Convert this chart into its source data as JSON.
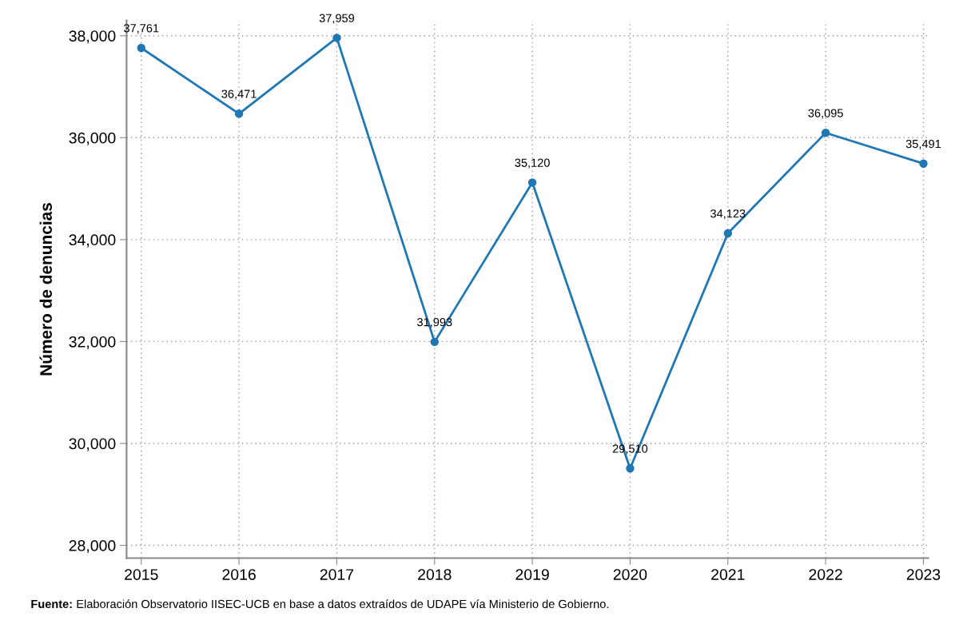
{
  "chart_data": {
    "type": "line",
    "ylabel": "Número de denuncias",
    "x": [
      2015,
      2016,
      2017,
      2018,
      2019,
      2020,
      2021,
      2022,
      2023
    ],
    "series": [
      {
        "color": "#1f77b4",
        "values": [
          37761,
          36471,
          37959,
          31993,
          35120,
          29510,
          34123,
          36095,
          35491
        ],
        "value_labels": [
          "37,761",
          "36,471",
          "37,959",
          "31,993",
          "35,120",
          "29,510",
          "34,123",
          "36,095",
          "35,491"
        ]
      }
    ],
    "marker": "circle",
    "line_style": "solid",
    "grid": true,
    "xlim": [
      2014.85,
      2023.05
    ],
    "xticks": [
      2015,
      2016,
      2017,
      2018,
      2019,
      2020,
      2021,
      2022,
      2023
    ],
    "ylim": [
      27750,
      38300
    ],
    "yticks": [
      {
        "value": 28000,
        "label": "28,000"
      },
      {
        "value": 30000,
        "label": "30,000"
      },
      {
        "value": 32000,
        "label": "32,000"
      },
      {
        "value": 34000,
        "label": "34,000"
      },
      {
        "value": 36000,
        "label": "36,000"
      },
      {
        "value": 38000,
        "label": "38,000"
      }
    ],
    "annotations": [
      "Fuente: Elaboración Observatorio IISEC-UCB en base a datos extraídos de UDAPE vía Ministerio de Gobierno."
    ]
  }
}
